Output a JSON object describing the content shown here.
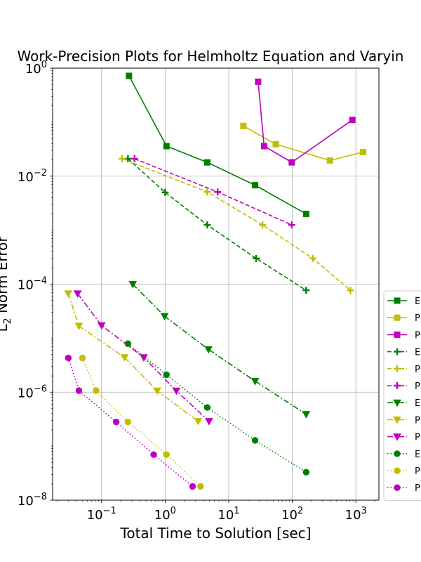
{
  "chart_data": {
    "type": "line",
    "title": "Work-Precision Plots for Helmholtz Equation and Varyin",
    "xlabel": "Total Time to Solution [sec]",
    "ylabel": "L2 Norm Error",
    "ylabel_parts": {
      "base": "L",
      "sub": "2",
      "rest": " Norm Error"
    },
    "xscale": "log",
    "yscale": "log",
    "xlim": [
      0.017,
      2300
    ],
    "ylim": [
      1e-08,
      1
    ],
    "grid": true,
    "legend_position": "right, partially clipped",
    "x_ticks": [
      {
        "value": 0.1,
        "base": "10",
        "exp": "−1"
      },
      {
        "value": 1,
        "base": "10",
        "exp": "0"
      },
      {
        "value": 10,
        "base": "10",
        "exp": "1"
      },
      {
        "value": 100,
        "base": "10",
        "exp": "2"
      },
      {
        "value": 1000,
        "base": "10",
        "exp": "3"
      }
    ],
    "y_ticks": [
      {
        "value": 1e-08,
        "base": "10",
        "exp": "−8"
      },
      {
        "value": 1e-06,
        "base": "10",
        "exp": "−6"
      },
      {
        "value": 0.0001,
        "base": "10",
        "exp": "−4"
      },
      {
        "value": 0.01,
        "base": "10",
        "exp": "−2"
      },
      {
        "value": 1,
        "base": "10",
        "exp": "0"
      }
    ],
    "series": [
      {
        "legend": "E",
        "color": "#008000",
        "dash": "solid",
        "marker": "square",
        "points": [
          [
            0.27,
            0.72
          ],
          [
            1.05,
            0.036
          ],
          [
            4.6,
            0.018
          ],
          [
            26,
            0.0068
          ],
          [
            165,
            0.002
          ]
        ]
      },
      {
        "legend": "P",
        "color": "#bfbf00",
        "dash": "solid",
        "marker": "square",
        "points": [
          [
            17,
            0.085
          ],
          [
            55,
            0.039
          ],
          [
            390,
            0.0195
          ],
          [
            1300,
            0.028
          ]
        ]
      },
      {
        "legend": "P",
        "color": "#bf00bf",
        "dash": "solid",
        "marker": "square",
        "points": [
          [
            29,
            0.56
          ],
          [
            36,
            0.036
          ],
          [
            98,
            0.018
          ],
          [
            880,
            0.11
          ]
        ]
      },
      {
        "legend": "E",
        "color": "#008000",
        "dash": "dashed",
        "marker": "plus",
        "points": [
          [
            0.26,
            0.021
          ],
          [
            1.0,
            0.005
          ],
          [
            4.6,
            0.00125
          ],
          [
            27,
            0.0003
          ],
          [
            165,
            7.7e-05
          ]
        ]
      },
      {
        "legend": "P",
        "color": "#bfbf00",
        "dash": "dashed",
        "marker": "plus",
        "points": [
          [
            0.21,
            0.021
          ],
          [
            4.6,
            0.0051
          ],
          [
            34,
            0.00125
          ],
          [
            210,
            0.0003
          ],
          [
            820,
            7.7e-05
          ]
        ]
      },
      {
        "legend": "P",
        "color": "#bf00bf",
        "dash": "dashed",
        "marker": "plus",
        "points": [
          [
            0.33,
            0.021
          ],
          [
            6.7,
            0.0051
          ],
          [
            98,
            0.00125
          ]
        ]
      },
      {
        "legend": "E",
        "color": "#008000",
        "dash": "dashdot",
        "marker": "triangle_down",
        "points": [
          [
            0.31,
            0.0001
          ],
          [
            0.98,
            2.55e-05
          ],
          [
            4.8,
            6.2e-06
          ],
          [
            26,
            1.6e-06
          ],
          [
            165,
            3.9e-07
          ]
        ]
      },
      {
        "legend": "P",
        "color": "#bfbf00",
        "dash": "dashdot",
        "marker": "triangle_down",
        "points": [
          [
            0.03,
            6.7e-05
          ],
          [
            0.044,
            1.68e-05
          ],
          [
            0.23,
            4.4e-06
          ],
          [
            0.75,
            1.06e-06
          ],
          [
            3.3,
            2.9e-07
          ]
        ]
      },
      {
        "legend": "P",
        "color": "#bf00bf",
        "dash": "dashdot",
        "marker": "triangle_down",
        "points": [
          [
            0.042,
            6.7e-05
          ],
          [
            0.1,
            1.72e-05
          ],
          [
            0.46,
            4.4e-06
          ],
          [
            1.5,
            1.06e-06
          ],
          [
            4.9,
            2.9e-07
          ]
        ]
      },
      {
        "legend": "E",
        "color": "#008000",
        "dash": "dotted",
        "marker": "circle",
        "points": [
          [
            0.26,
            7.9e-06
          ],
          [
            1.05,
            2.1e-06
          ],
          [
            4.6,
            5.2e-07
          ],
          [
            26,
            1.28e-07
          ],
          [
            165,
            3.3e-08
          ]
        ]
      },
      {
        "legend": "P",
        "color": "#bfbf00",
        "dash": "dotted",
        "marker": "circle",
        "points": [
          [
            0.05,
            4.3e-06
          ],
          [
            0.082,
            1.07e-06
          ],
          [
            0.26,
            2.8e-07
          ],
          [
            1.05,
            7e-08
          ],
          [
            3.6,
            1.8e-08
          ]
        ]
      },
      {
        "legend": "P",
        "color": "#bf00bf",
        "dash": "dotted",
        "marker": "circle",
        "points": [
          [
            0.03,
            4.3e-06
          ],
          [
            0.044,
            1.07e-06
          ],
          [
            0.17,
            2.8e-07
          ],
          [
            0.66,
            7e-08
          ],
          [
            2.7,
            1.8e-08
          ]
        ]
      }
    ]
  }
}
